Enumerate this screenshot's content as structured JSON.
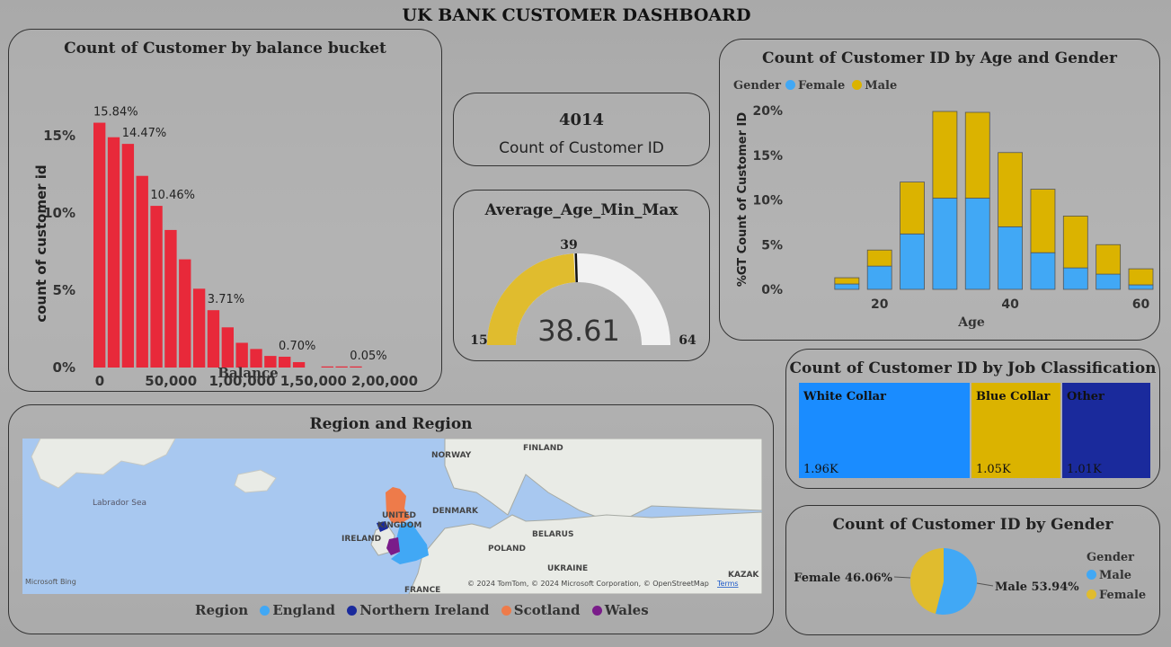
{
  "dashboard_title": "UK BANK CUSTOMER DASHBOARD",
  "colors": {
    "red": "#e8293a",
    "blue": "#41a8f5",
    "gold": "#dbb300",
    "dark_blue": "#1a2a9c",
    "orange": "#ee7b4a",
    "purple": "#7a1c8a",
    "gauge_fill": "#e0bc2e",
    "gauge_track": "#f2f2f2"
  },
  "balance_chart": {
    "title": "Count of Customer by balance bucket",
    "chart_data": {
      "type": "bar",
      "title": "Count of Customer by balance bucket",
      "xlabel": "Balance",
      "ylabel": "count of customer id",
      "x_ticks": [
        "0",
        "50,000",
        "1,00,000",
        "1,50,000",
        "2,00,000"
      ],
      "y_ticks": [
        "0%",
        "5%",
        "10%",
        "15%"
      ],
      "ylim": [
        0,
        17
      ],
      "bucket_width": 10000,
      "buckets": [
        0,
        10000,
        20000,
        30000,
        40000,
        50000,
        60000,
        70000,
        80000,
        90000,
        100000,
        110000,
        120000,
        130000,
        140000,
        160000,
        170000,
        180000
      ],
      "values": [
        15.84,
        14.9,
        14.47,
        12.4,
        10.46,
        8.9,
        7.0,
        5.1,
        3.71,
        2.6,
        1.6,
        1.2,
        0.75,
        0.7,
        0.35,
        0.05,
        0.06,
        0.05
      ],
      "data_labels": [
        {
          "index": 0,
          "text": "15.84%"
        },
        {
          "index": 2,
          "text": "14.47%"
        },
        {
          "index": 4,
          "text": "10.46%"
        },
        {
          "index": 8,
          "text": "3.71%"
        },
        {
          "index": 13,
          "text": "0.70%"
        },
        {
          "index": 17,
          "text": "0.05%"
        }
      ]
    }
  },
  "kpi": {
    "value": "4014",
    "label": "Count of Customer ID"
  },
  "gauge": {
    "title": "Average_Age_Min_Max",
    "value": 38.61,
    "value_text": "38.61",
    "min": 15,
    "max": 64,
    "target": 39,
    "min_text": "15",
    "max_text": "64",
    "target_text": "39"
  },
  "age_gender_chart": {
    "title": "Count of Customer ID by Age and Gender",
    "legend_title": "Gender",
    "chart_data": {
      "type": "bar",
      "stacked": true,
      "title": "Count of Customer ID by Age and Gender",
      "xlabel": "Age",
      "ylabel": "%GT Count of Customer ID",
      "x_ticks": [
        "20",
        "40",
        "60"
      ],
      "y_ticks": [
        "0%",
        "5%",
        "10%",
        "15%",
        "20%"
      ],
      "xlim": [
        10,
        65
      ],
      "ylim": [
        0,
        20
      ],
      "x": [
        15,
        20,
        25,
        30,
        35,
        40,
        45,
        50,
        55,
        60
      ],
      "series": [
        {
          "name": "Female",
          "color": "#41a8f5",
          "values": [
            0.6,
            2.6,
            6.2,
            10.2,
            10.2,
            7.0,
            4.1,
            2.4,
            1.7,
            0.5
          ]
        },
        {
          "name": "Male",
          "color": "#dbb300",
          "values": [
            0.7,
            1.8,
            5.8,
            9.7,
            9.6,
            8.3,
            7.1,
            5.8,
            3.3,
            1.8
          ]
        }
      ]
    }
  },
  "job_chart": {
    "title": "Count of Customer ID by Job Classification",
    "chart_data": {
      "type": "treemap",
      "items": [
        {
          "label": "White Collar",
          "value_text": "1.96K",
          "value": 1960,
          "color": "#1a8cff"
        },
        {
          "label": "Blue Collar",
          "value_text": "1.05K",
          "value": 1050,
          "color": "#dbb300"
        },
        {
          "label": "Other",
          "value_text": "1.01K",
          "value": 1010,
          "color": "#1a2a9c"
        }
      ]
    }
  },
  "region_map": {
    "title": "Region and Region",
    "legend_title": "Region",
    "legend": [
      {
        "name": "England",
        "color": "#41a8f5"
      },
      {
        "name": "Northern Ireland",
        "color": "#1a2a9c"
      },
      {
        "name": "Scotland",
        "color": "#ee7b4a"
      },
      {
        "name": "Wales",
        "color": "#7a1c8a"
      }
    ],
    "place_labels": [
      "Labrador Sea",
      "NORWAY",
      "FINLAND",
      "UNITED",
      "KINGDOM",
      "DENMARK",
      "IRELAND",
      "POLAND",
      "BELARUS",
      "UKRAINE",
      "FRANCE",
      "KAZAK"
    ],
    "attribution": "© 2024 TomTom, © 2024 Microsoft Corporation, © OpenStreetMap",
    "terms": "Terms",
    "provider": "Microsoft Bing"
  },
  "gender_chart": {
    "title": "Count of Customer ID by Gender",
    "legend_title": "Gender",
    "chart_data": {
      "type": "pie",
      "slices": [
        {
          "name": "Male",
          "value": 53.94,
          "label": "Male 53.94%",
          "color": "#41a8f5"
        },
        {
          "name": "Female",
          "value": 46.06,
          "label": "Female 46.06%",
          "color": "#e0bc2e"
        }
      ]
    }
  }
}
